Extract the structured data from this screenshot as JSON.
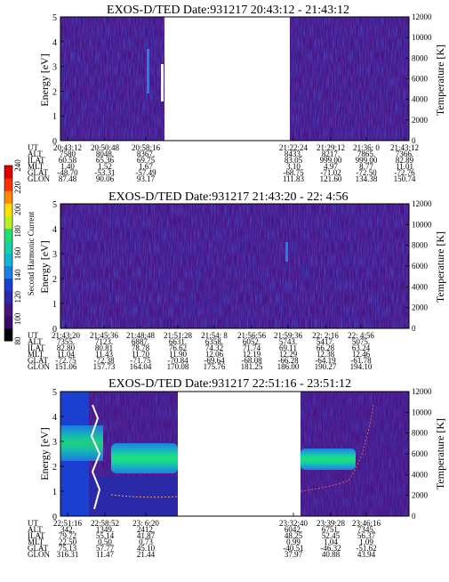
{
  "colorbar": {
    "label": "Second Harmonic Current",
    "ticks": [
      "80",
      "100",
      "120",
      "140",
      "160",
      "180",
      "200",
      "220",
      "240"
    ],
    "colors": [
      "#000000",
      "#3a0a6a",
      "#4b1380",
      "#2a2aa8",
      "#1b3fd0",
      "#1e7fe8",
      "#12b5d6",
      "#14d2a4",
      "#22e070",
      "#b8f020",
      "#ffe000",
      "#ff8a00",
      "#ff3000",
      "#e00000"
    ]
  },
  "chart_data": [
    {
      "type": "heatmap",
      "title": "EXOS-D/TED   Date:931217  20:43:12 - 21:43:12",
      "ylabel": "Energy [eV]",
      "y2label": "Temperature [K]",
      "ylim": [
        0,
        5
      ],
      "y2lim": [
        0,
        12000
      ],
      "yticks": [
        "0",
        "1",
        "2",
        "3",
        "4",
        "5"
      ],
      "y2ticks": [
        "0",
        "2000",
        "4000",
        "6000",
        "8000",
        "10000",
        "12000"
      ],
      "data_gap": "20:58:16 - 21:22:24",
      "table": {
        "row_labels": [
          "UT",
          "ALT",
          "ILAT",
          "MLT",
          "GLAT",
          "GLON"
        ],
        "columns": [
          [
            "20:43:12",
            "7580",
            "60.58",
            "1.40",
            "-48.70",
            "87.48"
          ],
          [
            "20:50:48",
            "8048.",
            "65.36",
            "1.52",
            "-53.31",
            "90.06"
          ],
          [
            "20:58:16",
            "8367.",
            "69.75",
            "1.67",
            "-57.49",
            "93.17"
          ],
          [
            "21:22:24",
            "8433.",
            "83.05",
            "3.10",
            "-68.75",
            "111.83"
          ],
          [
            "21:29:12",
            "8217.",
            "999.00",
            "4.97",
            "-71.02",
            "121.60"
          ],
          [
            "21:36: 0",
            "7865.",
            "999.00",
            "8.77",
            "-72.50",
            "134.38"
          ],
          [
            "21:43:12",
            "7366.",
            "82.89",
            "11.01",
            "-72.76",
            "150.74"
          ]
        ]
      }
    },
    {
      "type": "heatmap",
      "title": "EXOS-D/TED   Date:931217  21:43:20 - 22: 4:56",
      "ylabel": "Energy [eV]",
      "y2label": "Temperature [K]",
      "ylim": [
        0,
        5
      ],
      "y2lim": [
        0,
        12000
      ],
      "yticks": [
        "0",
        "1",
        "2",
        "3",
        "4",
        "5"
      ],
      "y2ticks": [
        "0",
        "2000",
        "4000",
        "6000",
        "8000",
        "10000",
        "12000"
      ],
      "table": {
        "row_labels": [
          "UT",
          "ALT",
          "ILAT",
          "MLT",
          "GLAT",
          "GLON"
        ],
        "columns": [
          [
            "21:43:20",
            "7355.",
            "82.80",
            "11.04",
            "-72.75",
            "151.06"
          ],
          [
            "21:45:36",
            "7123.",
            "80.81",
            "11.43",
            "-72.38",
            "157.73"
          ],
          [
            "21:48:48",
            "6887.",
            "78.78",
            "11.70",
            "-71.75",
            "164.04"
          ],
          [
            "21:51:28",
            "6631.",
            "76.62",
            "11.90",
            "-70.84",
            "170.08"
          ],
          [
            "21:54: 8",
            "6358.",
            "74.32",
            "12.06",
            "-69.64",
            "175.76"
          ],
          [
            "21:56:56",
            "6052.",
            "71.74",
            "12.19",
            "-68.08",
            "181.25"
          ],
          [
            "21:59:36",
            "5743.",
            "69.11",
            "12.29",
            "-66.28",
            "186.00"
          ],
          [
            "22: 2:16",
            "5417.",
            "66.28",
            "12.38",
            "-64.19",
            "190.27"
          ],
          [
            "22: 4:56",
            "5075.",
            "63.24",
            "12.46",
            "-61.78",
            "194.10"
          ]
        ]
      }
    },
    {
      "type": "heatmap",
      "title": "EXOS-D/TED   Date:931217  22:51:16 - 23:51:12",
      "ylabel": "Energy [eV]",
      "y2label": "Temperature [K]",
      "ylim": [
        0,
        5
      ],
      "y2lim": [
        0,
        12000
      ],
      "yticks": [
        "0",
        "1",
        "2",
        "3",
        "4",
        "5"
      ],
      "y2ticks": [
        "0",
        "2000",
        "4000",
        "6000",
        "8000",
        "10000",
        "12000"
      ],
      "data_gap": "23: 6:20 - 23:32:40",
      "table": {
        "row_labels": [
          "UT",
          "ALT",
          "ILAT",
          "MLT",
          "GLAT",
          "GLON"
        ],
        "columns": [
          [
            "22:51:16",
            "342.",
            "79.72",
            "22.50",
            "75.13",
            "316.31"
          ],
          [
            "22:58:52",
            "1349.",
            "55.14",
            "0.50",
            "57.77",
            "11.47"
          ],
          [
            "23: 6:20",
            "2412.",
            "41.87",
            "0.73",
            "45.10",
            "21.44"
          ],
          [
            "23:32:40",
            "6042.",
            "48.25",
            "0.99",
            "-40.51",
            "37.97"
          ],
          [
            "23:39:28",
            "6751.",
            "52.45",
            "1.04",
            "-46.32",
            "40.88"
          ],
          [
            "23:46:16",
            "7345.",
            "56.37",
            "1.09",
            "-51.62",
            "43.94"
          ]
        ]
      }
    }
  ]
}
